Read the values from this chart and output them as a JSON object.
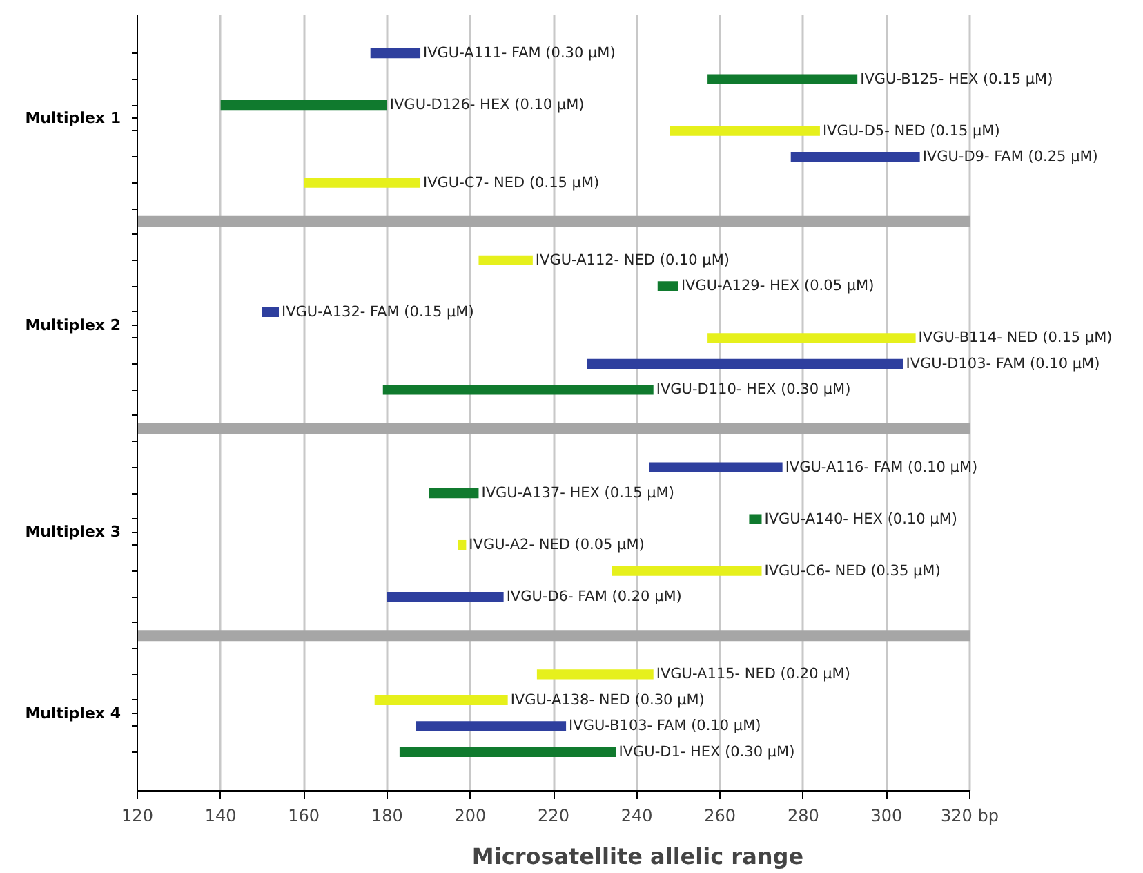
{
  "chart_data": {
    "type": "bar",
    "orientation": "horizontal",
    "xlabel": "Microsatellite allelic range",
    "categories": [
      "IVGU-A111- FAM (0.30 µM)",
      "IVGU-B125- HEX (0.15 µM)",
      "IVGU-D126- HEX (0.10 µM)",
      "IVGU-D5- NED (0.15 µM)",
      "IVGU-D9- FAM (0.25 µM)",
      "IVGU-C7- NED (0.15 µM)",
      null,
      null,
      "IVGU-A112- NED (0.10 µM)",
      "IVGU-A129- HEX (0.05 µM)",
      "IVGU-A132- FAM (0.15 µM)",
      "IVGU-B114- NED (0.15 µM)",
      "IVGU-D103- FAM (0.10 µM)",
      "IVGU-D110- HEX (0.30 µM)",
      null,
      null,
      "IVGU-A116- FAM (0.10 µM)",
      "IVGU-A137- HEX (0.15 µM)",
      "IVGU-A140- HEX (0.10 µM)",
      "IVGU-A2- NED (0.05 µM)",
      "IVGU-C6- NED (0.35 µM)",
      "IVGU-D6- FAM (0.20 µM)",
      null,
      null,
      "IVGU-A115- NED (0.20 µM)",
      "IVGU-A138- NED (0.30 µM)",
      "IVGU-B103- FAM (0.10 µM)",
      "IVGU-D1- HEX (0.30 µM)"
    ],
    "base": [
      176,
      257,
      140,
      248,
      277,
      160,
      null,
      null,
      202,
      245,
      150,
      257,
      228,
      179,
      null,
      null,
      243,
      190,
      267,
      197,
      234,
      180,
      null,
      null,
      216,
      177,
      187,
      183
    ],
    "values": [
      12,
      36,
      40,
      36,
      31,
      28,
      null,
      null,
      13,
      5,
      4,
      50,
      76,
      65,
      null,
      null,
      32,
      12,
      3,
      2,
      36,
      28,
      null,
      null,
      28,
      32,
      36,
      52
    ],
    "colors": [
      "#2e3f9e",
      "#107a2e",
      "#107a2e",
      "#e6f01c",
      "#2e3f9e",
      "#e6f01c",
      null,
      null,
      "#e6f01c",
      "#107a2e",
      "#2e3f9e",
      "#e6f01c",
      "#2e3f9e",
      "#107a2e",
      null,
      null,
      "#2e3f9e",
      "#107a2e",
      "#107a2e",
      "#e6f01c",
      "#e6f01c",
      "#2e3f9e",
      null,
      null,
      "#e6f01c",
      "#e6f01c",
      "#2e3f9e",
      "#107a2e"
    ],
    "annotations": [
      "Multiplex 1",
      "Multiplex 2",
      "Multiplex 3",
      "Multiplex 4"
    ],
    "xlim": [
      120,
      320
    ],
    "xticks": [
      120,
      140,
      160,
      180,
      200,
      220,
      240,
      260,
      280,
      300,
      {
        "value": 320,
        "label": "320 bp"
      }
    ],
    "grid": "x"
  }
}
